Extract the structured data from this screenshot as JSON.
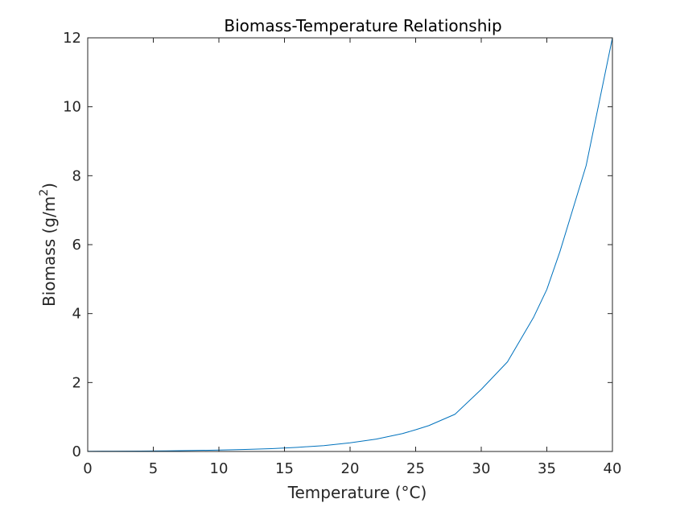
{
  "chart_data": {
    "type": "line",
    "title": "Biomass-Temperature Relationship",
    "xlabel": "Temperature (°C)",
    "ylabel_main": "Biomass (g/m",
    "ylabel_sup": "2",
    "ylabel_close": ")",
    "xlim": [
      0,
      40
    ],
    "ylim": [
      0,
      12
    ],
    "x_ticks": [
      0,
      5,
      10,
      15,
      20,
      25,
      30,
      35,
      40
    ],
    "y_ticks": [
      0,
      2,
      4,
      6,
      8,
      10,
      12
    ],
    "x_tick_labels": [
      "0",
      "5",
      "10",
      "15",
      "20",
      "25",
      "30",
      "35",
      "40"
    ],
    "y_tick_labels": [
      "0",
      "2",
      "4",
      "6",
      "8",
      "10",
      "12"
    ],
    "grid": false,
    "series": [
      {
        "color": "#0072bd",
        "x": [
          0,
          2,
          4,
          6,
          8,
          10,
          12,
          14,
          16,
          18,
          20,
          22,
          24,
          25,
          26,
          28,
          30,
          32,
          34,
          35,
          36,
          38,
          40
        ],
        "y": [
          0.006,
          0.009,
          0.013,
          0.019,
          0.028,
          0.04,
          0.057,
          0.083,
          0.12,
          0.17,
          0.25,
          0.36,
          0.52,
          0.63,
          0.75,
          1.08,
          1.8,
          2.6,
          3.9,
          4.7,
          5.8,
          8.3,
          12.0
        ]
      }
    ]
  }
}
